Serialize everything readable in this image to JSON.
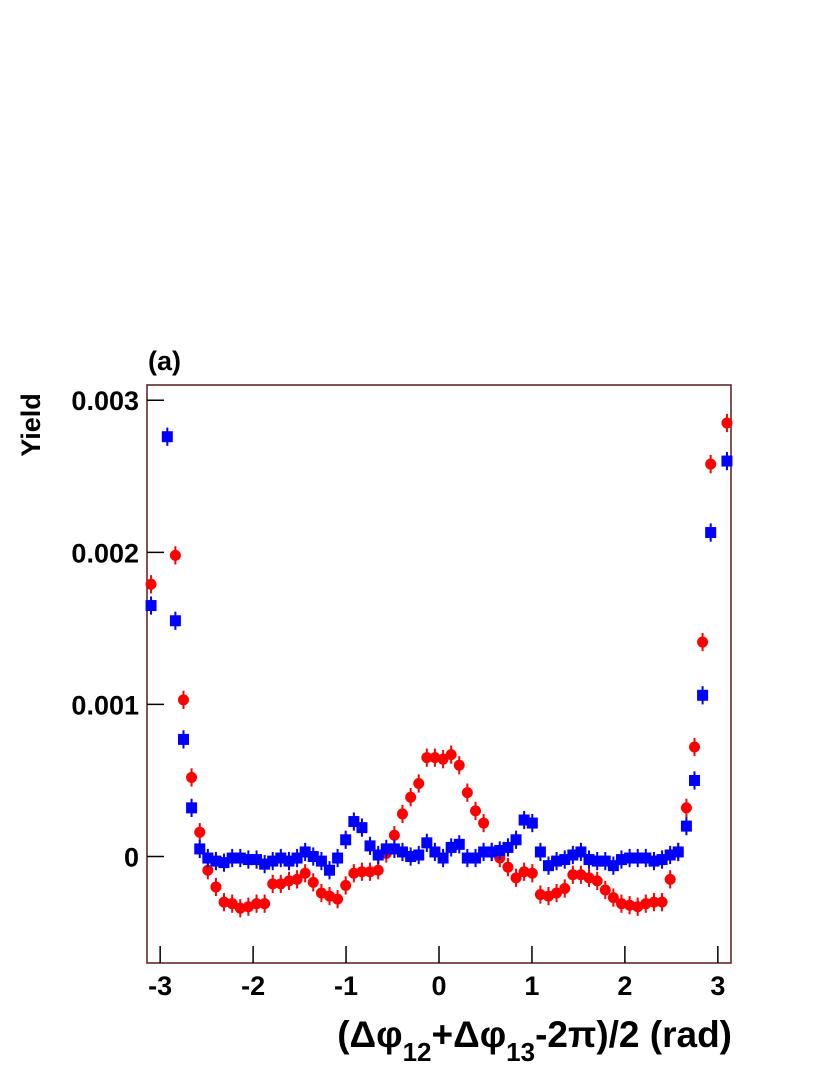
{
  "chart_data": {
    "type": "scatter",
    "panel_label": "(a)",
    "y_label": "Yield",
    "x_label": [
      "(Δφ",
      "12",
      "+Δφ",
      "13",
      "-2π)/2  (rad)"
    ],
    "xlim": [
      -3.1416,
      3.1416
    ],
    "ylim": [
      -0.0007,
      0.0031
    ],
    "xticks": [
      -3,
      -2,
      -1,
      0,
      1,
      2,
      3
    ],
    "yticks": [
      0,
      0.001,
      0.002,
      0.003
    ],
    "frame_color": "#5a1a1a",
    "x": [
      -3.098,
      -3.011,
      -2.923,
      -2.836,
      -2.749,
      -2.662,
      -2.574,
      -2.487,
      -2.4,
      -2.313,
      -2.225,
      -2.138,
      -2.051,
      -1.963,
      -1.876,
      -1.789,
      -1.702,
      -1.614,
      -1.527,
      -1.44,
      -1.353,
      -1.265,
      -1.178,
      -1.091,
      -1.004,
      -0.916,
      -0.829,
      -0.742,
      -0.654,
      -0.567,
      -0.48,
      -0.393,
      -0.305,
      -0.218,
      -0.131,
      -0.044,
      0.044,
      0.131,
      0.218,
      0.305,
      0.393,
      0.48,
      0.567,
      0.654,
      0.742,
      0.829,
      0.916,
      1.004,
      1.091,
      1.178,
      1.265,
      1.353,
      1.44,
      1.527,
      1.614,
      1.702,
      1.789,
      1.876,
      1.963,
      2.051,
      2.138,
      2.225,
      2.313,
      2.4,
      2.487,
      2.574,
      2.662,
      2.749,
      2.836,
      2.923,
      3.011,
      3.098
    ],
    "series": [
      {
        "color": "#ff0000",
        "marker": "circle",
        "values": [
          0.00179,
          null,
          null,
          0.00198,
          0.00103,
          0.00052,
          0.00016,
          -9e-05,
          -0.0002,
          -0.0003,
          -0.00031,
          -0.00034,
          -0.00033,
          -0.00031,
          -0.00031,
          -0.00018,
          -0.00018,
          -0.00016,
          -0.00015,
          -0.00011,
          -0.00017,
          -0.00024,
          -0.00026,
          -0.00028,
          -0.00019,
          -0.00011,
          -0.0001,
          -0.0001,
          -9e-05,
          2e-05,
          0.00014,
          0.00028,
          0.00039,
          0.00048,
          0.00065,
          0.00065,
          0.00064,
          0.00067,
          0.0006,
          0.00042,
          0.0003,
          0.00022,
          3e-05,
          -1e-05,
          -7e-05,
          -0.00014,
          -0.0001,
          -0.00011,
          -0.00025,
          -0.00026,
          -0.00024,
          -0.00021,
          -0.00012,
          -0.00012,
          -0.00014,
          -0.00016,
          -0.00022,
          -0.00027,
          -0.00031,
          -0.00032,
          -0.00033,
          -0.00031,
          -0.0003,
          -0.0003,
          -0.00015,
          3e-05,
          0.00032,
          0.00072,
          0.00141,
          0.00258,
          null,
          0.00285
        ],
        "errors": [
          6e-05,
          null,
          null,
          6e-05,
          6e-05,
          6e-05,
          6e-05,
          6e-05,
          6e-05,
          6e-05,
          6e-05,
          6e-05,
          6e-05,
          6e-05,
          6e-05,
          6e-05,
          6e-05,
          6e-05,
          6e-05,
          6e-05,
          6e-05,
          6e-05,
          6e-05,
          6e-05,
          6e-05,
          6e-05,
          6e-05,
          6e-05,
          6e-05,
          6e-05,
          6e-05,
          6e-05,
          6e-05,
          6e-05,
          6e-05,
          6e-05,
          6e-05,
          6e-05,
          6e-05,
          6e-05,
          6e-05,
          6e-05,
          6e-05,
          6e-05,
          6e-05,
          6e-05,
          6e-05,
          6e-05,
          6e-05,
          6e-05,
          6e-05,
          6e-05,
          6e-05,
          6e-05,
          6e-05,
          6e-05,
          6e-05,
          6e-05,
          6e-05,
          6e-05,
          6e-05,
          6e-05,
          6e-05,
          6e-05,
          6e-05,
          6e-05,
          6e-05,
          6e-05,
          6e-05,
          6e-05,
          null,
          6e-05
        ]
      },
      {
        "color": "#0000ff",
        "marker": "square",
        "values": [
          0.00165,
          null,
          0.00276,
          0.00155,
          0.00077,
          0.00032,
          5e-05,
          -1e-05,
          -3e-05,
          -4e-05,
          -1e-05,
          -1e-05,
          -2e-05,
          -2e-05,
          -5e-05,
          -3e-05,
          -1e-05,
          -3e-05,
          -1e-05,
          3e-05,
          0,
          -3e-05,
          -9e-05,
          -1e-05,
          0.00011,
          0.00023,
          0.00019,
          7e-05,
          1e-05,
          5e-05,
          5e-05,
          3e-05,
          0,
          1e-05,
          9e-05,
          3e-05,
          -1e-05,
          6e-05,
          8e-05,
          -1e-05,
          -1e-05,
          3e-05,
          3e-05,
          4e-05,
          6e-05,
          0.00011,
          0.00024,
          0.00022,
          3e-05,
          -6e-05,
          -3e-05,
          -2e-05,
          1e-05,
          3e-05,
          -2e-05,
          -3e-05,
          -3e-05,
          -6e-05,
          -2e-05,
          -1e-05,
          -1e-05,
          -1e-05,
          -3e-05,
          -2e-05,
          1e-05,
          3e-05,
          0.0002,
          0.0005,
          0.00106,
          0.00213,
          null,
          0.0026
        ],
        "errors": [
          6e-05,
          null,
          6e-05,
          6e-05,
          6e-05,
          6e-05,
          6e-05,
          6e-05,
          6e-05,
          6e-05,
          6e-05,
          6e-05,
          6e-05,
          6e-05,
          6e-05,
          6e-05,
          6e-05,
          6e-05,
          6e-05,
          6e-05,
          6e-05,
          6e-05,
          6e-05,
          6e-05,
          6e-05,
          6e-05,
          6e-05,
          6e-05,
          6e-05,
          6e-05,
          6e-05,
          6e-05,
          6e-05,
          6e-05,
          6e-05,
          6e-05,
          6e-05,
          6e-05,
          6e-05,
          6e-05,
          6e-05,
          6e-05,
          6e-05,
          6e-05,
          6e-05,
          6e-05,
          6e-05,
          6e-05,
          6e-05,
          6e-05,
          6e-05,
          6e-05,
          6e-05,
          6e-05,
          6e-05,
          6e-05,
          6e-05,
          6e-05,
          6e-05,
          6e-05,
          6e-05,
          6e-05,
          6e-05,
          6e-05,
          6e-05,
          6e-05,
          6e-05,
          6e-05,
          6e-05,
          6e-05,
          null,
          6e-05
        ]
      }
    ]
  }
}
